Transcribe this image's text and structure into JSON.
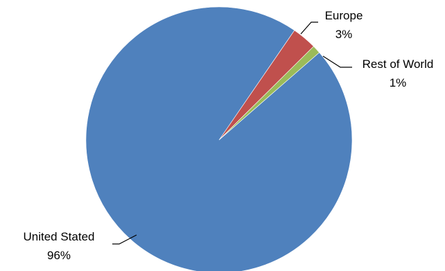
{
  "chart_data": {
    "type": "pie",
    "title": "",
    "legend": "none",
    "slices": [
      {
        "name": "Europe",
        "value": 3,
        "label": "3%",
        "color": "#C0504D"
      },
      {
        "name": "Rest of World",
        "value": 1,
        "label": "1%",
        "color": "#9BBB59"
      },
      {
        "name": "United Stated",
        "value": 96,
        "label": "96%",
        "color": "#4F81BD"
      }
    ]
  }
}
